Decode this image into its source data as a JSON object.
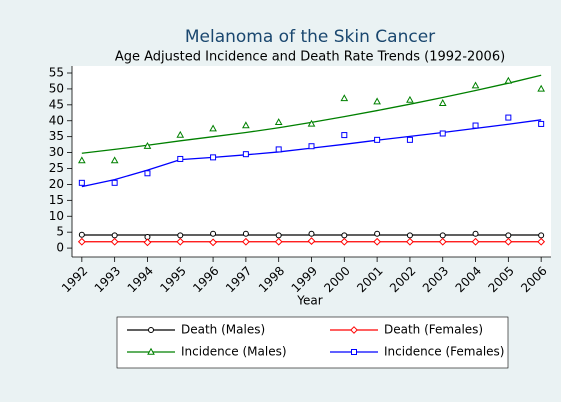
{
  "chart_data": {
    "type": "line",
    "title": "Melanoma of the Skin Cancer",
    "subtitle": "Age Adjusted Incidence and Death Rate Trends (1992-2006)",
    "x_label": "Year",
    "x": [
      1992,
      1993,
      1994,
      1995,
      1996,
      1997,
      1998,
      1999,
      2000,
      2001,
      2002,
      2003,
      2004,
      2005,
      2006
    ],
    "xlim": [
      1991.7,
      2006.3
    ],
    "xticks": [
      1992,
      1993,
      1994,
      1995,
      1996,
      1997,
      1998,
      1999,
      2000,
      2001,
      2002,
      2003,
      2004,
      2005,
      2006
    ],
    "ylim": [
      -2.8,
      57.2
    ],
    "yticks": [
      0,
      5,
      10,
      15,
      20,
      25,
      30,
      35,
      40,
      45,
      50,
      55
    ],
    "grid": false,
    "series": [
      {
        "name": "Death (Males)",
        "color": "#000000",
        "marker": "circle",
        "values": [
          4.2,
          4,
          3.5,
          4,
          4.5,
          4.5,
          4,
          4.5,
          4,
          4.5,
          4,
          4,
          4.5,
          4,
          4
        ],
        "trend": [
          4.1,
          4.1,
          4.1,
          4.1,
          4.1,
          4.1,
          4.1,
          4.1,
          4.1,
          4.1,
          4.1,
          4.1,
          4.1,
          4.1,
          4.1
        ]
      },
      {
        "name": "Death (Females)",
        "color": "#ff0000",
        "marker": "diamond",
        "values": [
          2,
          2,
          1.8,
          2,
          1.8,
          2,
          2,
          2.2,
          2,
          2,
          2,
          2,
          2,
          2,
          2
        ],
        "trend": [
          2,
          2,
          2,
          2,
          2,
          2,
          2,
          2,
          2,
          2,
          2,
          2,
          2,
          2,
          2
        ]
      },
      {
        "name": "Incidence (Males)",
        "color": "#008000",
        "marker": "triangle",
        "values": [
          27.5,
          27.5,
          32,
          35.5,
          37.5,
          38.5,
          39.5,
          39,
          47,
          46,
          46.5,
          45.5,
          51,
          52.5,
          50
        ],
        "trend": [
          29.8,
          31,
          32.3,
          33.7,
          35,
          36.3,
          37.8,
          39.5,
          41.3,
          43.2,
          45.2,
          47.3,
          49.5,
          51.8,
          54.3
        ]
      },
      {
        "name": "Incidence (Females)",
        "color": "#0000ff",
        "marker": "square",
        "values": [
          20.5,
          20.5,
          23.5,
          28,
          28.5,
          29.5,
          31,
          32,
          35.5,
          34,
          34,
          36,
          38.5,
          41,
          39
        ],
        "trend": [
          19.3,
          21.5,
          24.5,
          27.8,
          28.5,
          29.3,
          30.2,
          31.4,
          32.6,
          33.9,
          35.1,
          36.3,
          37.6,
          38.9,
          40.3
        ]
      }
    ]
  }
}
